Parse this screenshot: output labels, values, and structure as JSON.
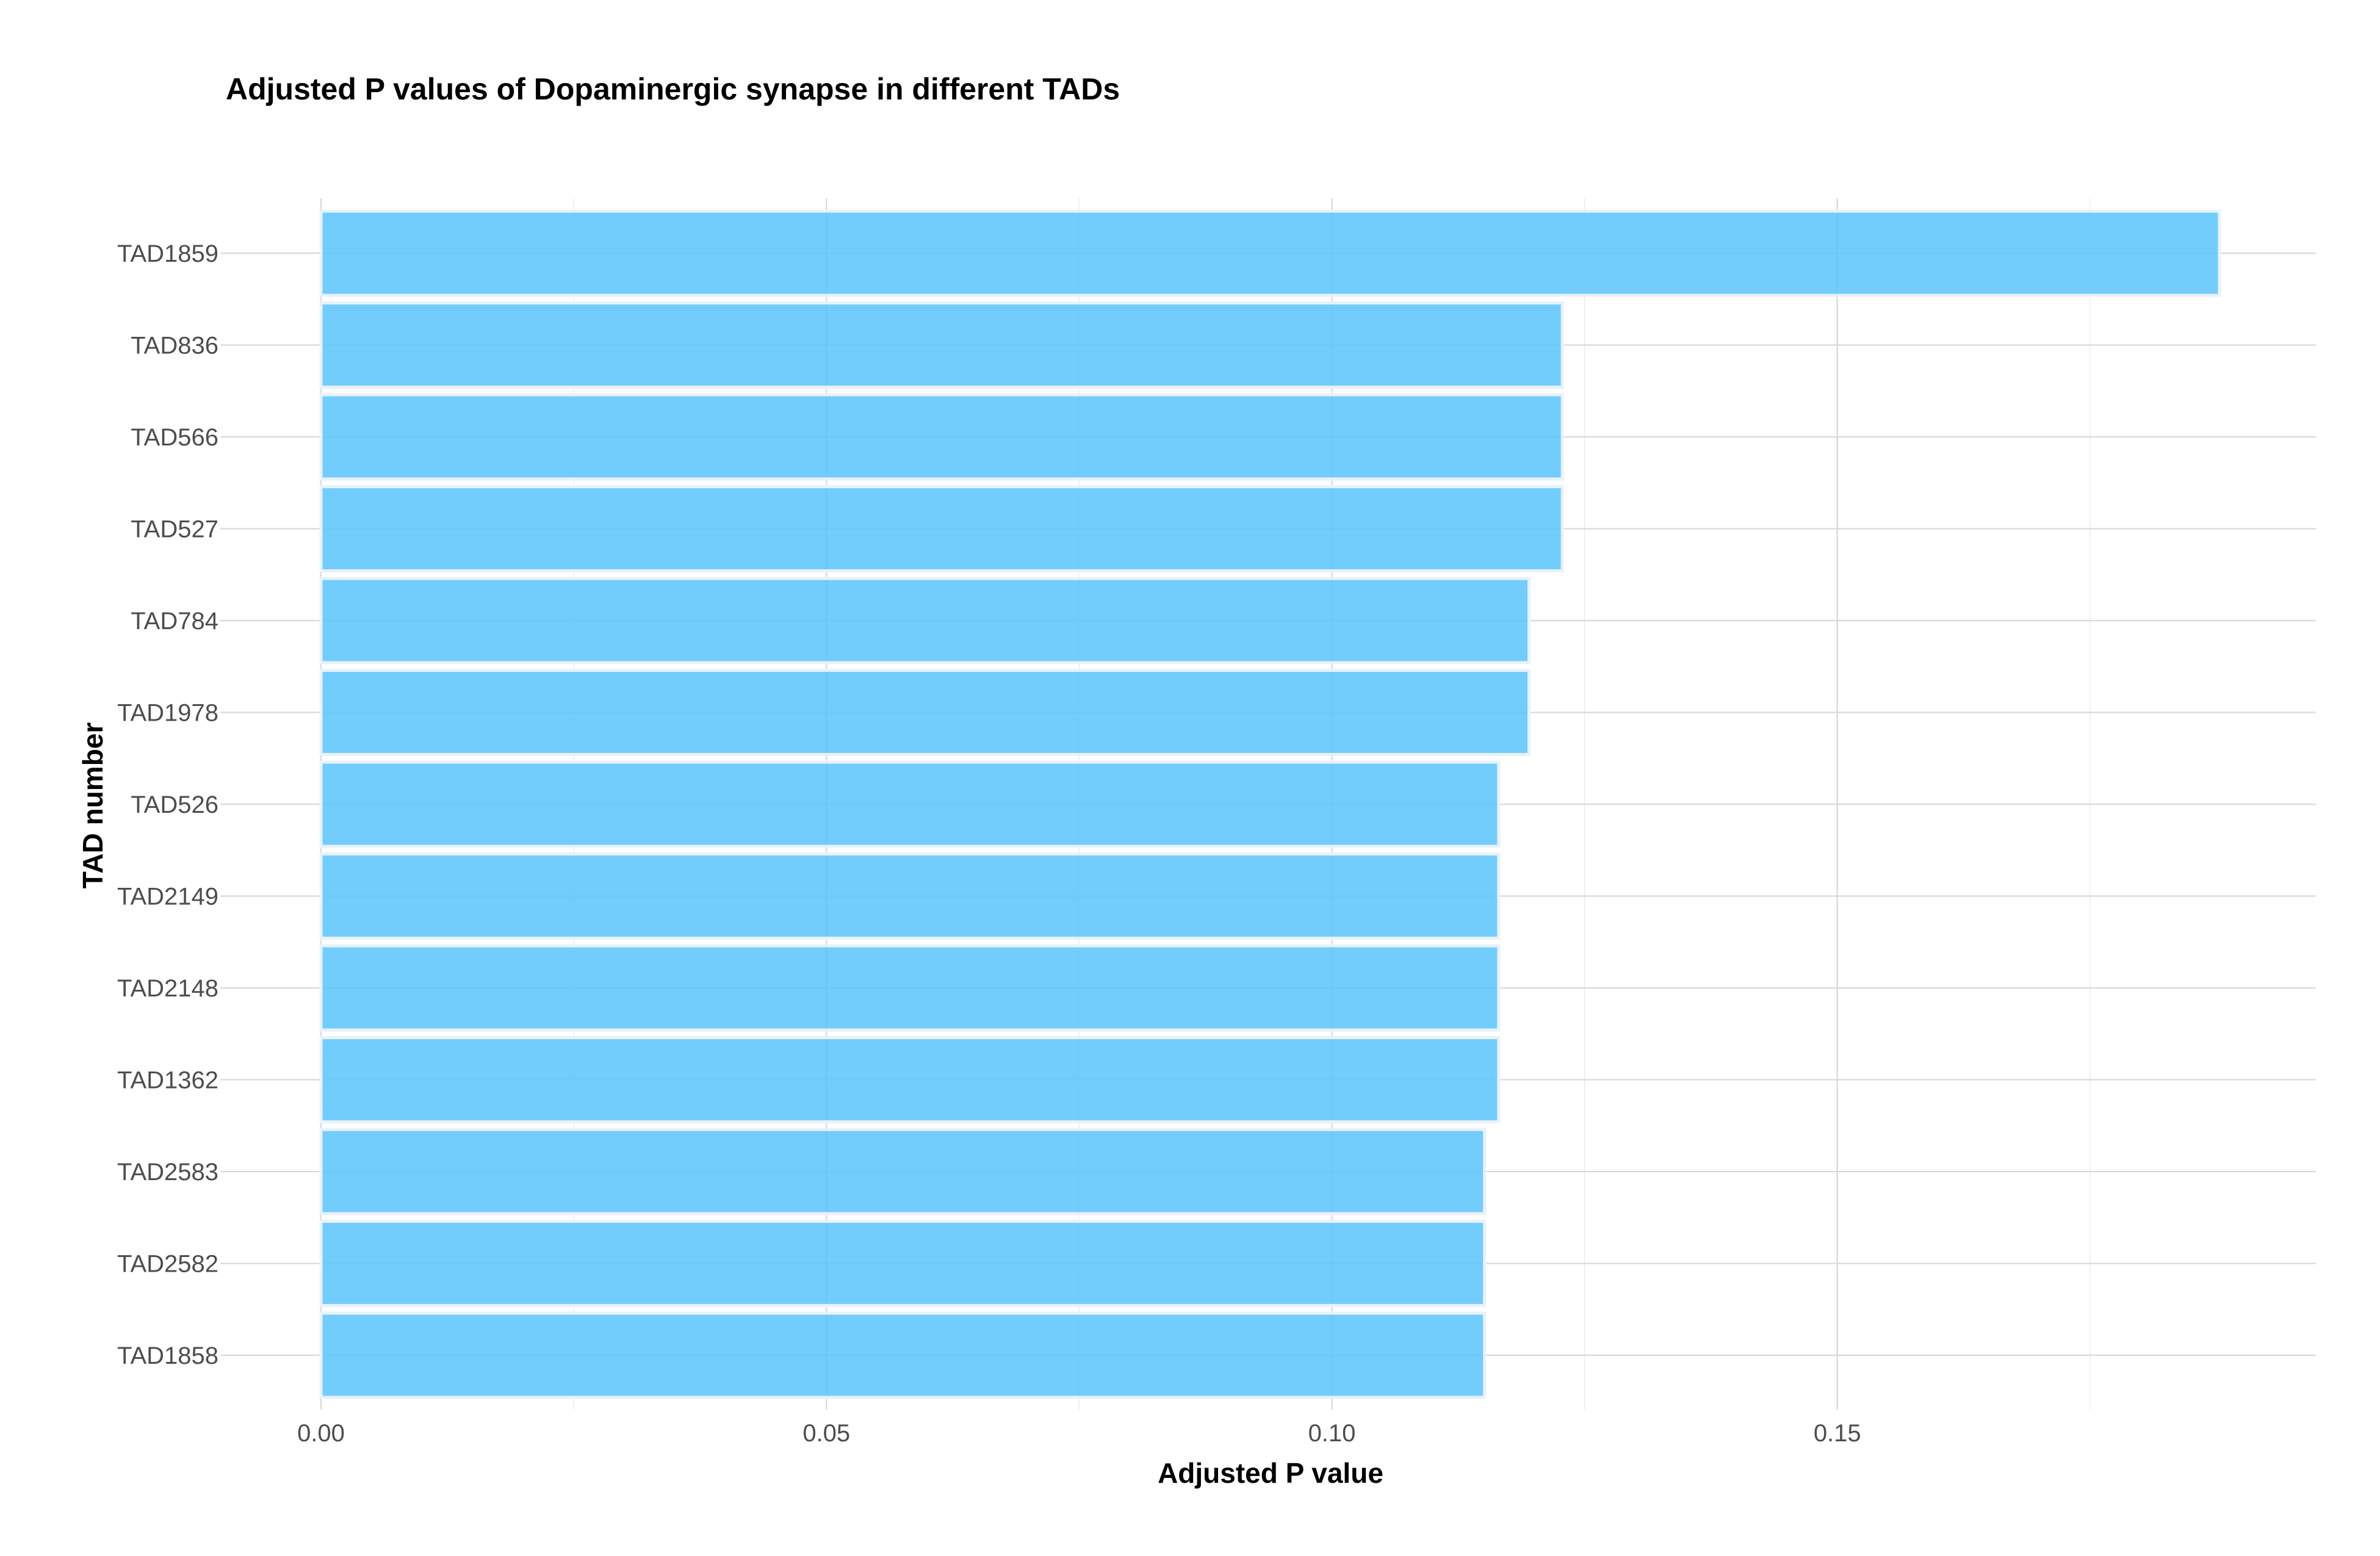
{
  "chart_data": {
    "type": "bar",
    "orientation": "horizontal",
    "title": "Adjusted P values of Dopaminergic synapse in different TADs",
    "xlabel": "Adjusted P value",
    "ylabel": "TAD number",
    "categories": [
      "TAD1859",
      "TAD836",
      "TAD566",
      "TAD527",
      "TAD784",
      "TAD1978",
      "TAD526",
      "TAD2149",
      "TAD2148",
      "TAD1362",
      "TAD2583",
      "TAD2582",
      "TAD1858"
    ],
    "values": [
      0.1878,
      0.1228,
      0.1228,
      0.1228,
      0.1195,
      0.1195,
      0.1165,
      0.1165,
      0.1165,
      0.1165,
      0.1151,
      0.1151,
      0.1151
    ],
    "xlim": [
      0,
      0.197
    ],
    "xticks": [
      0.0,
      0.05,
      0.1,
      0.15
    ],
    "xtick_labels": [
      "0.00",
      "0.05",
      "0.10",
      "0.15"
    ],
    "bar_color": "#5bc4fb",
    "grid": true,
    "legend": "none"
  }
}
